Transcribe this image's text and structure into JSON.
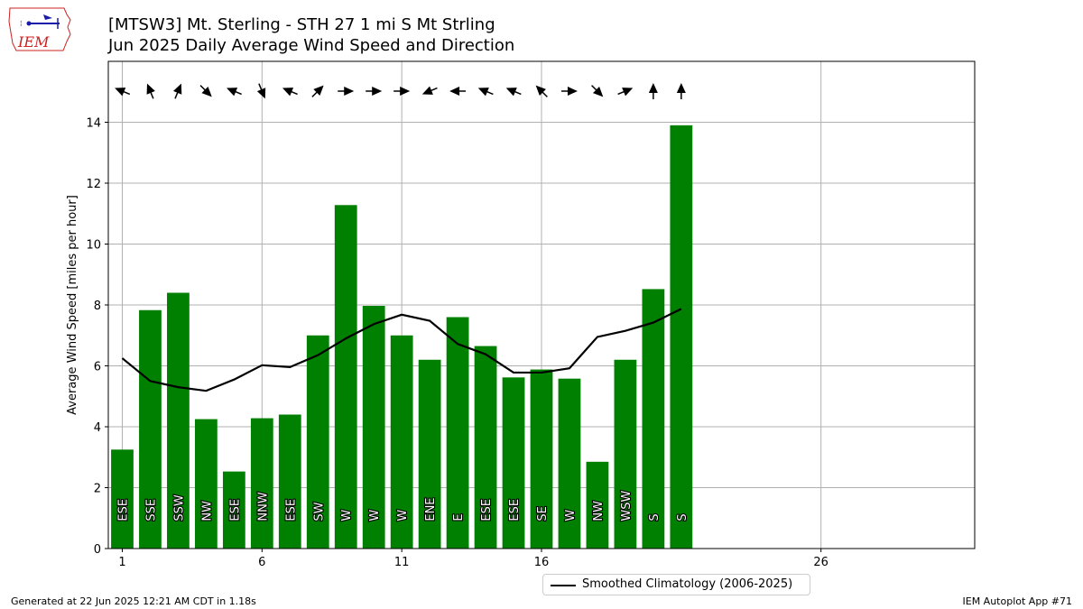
{
  "header": {
    "title_line1": "[MTSW3] Mt. Sterling - STH 27 1 mi S Mt Strling",
    "title_line2": "Jun 2025 Daily Average Wind Speed and Direction",
    "logo_text": "IEM"
  },
  "footer": {
    "generated": "Generated at 22 Jun 2025 12:21 AM CDT in 1.18s",
    "app": "IEM Autoplot App #71"
  },
  "legend": {
    "climatology_label": "Smoothed Climatology (2006-2025)"
  },
  "colors": {
    "bar": "#008000",
    "climatology": "#000000",
    "grid": "#b0b0b0",
    "logo_red": "#cc2222",
    "logo_blue": "#1a1aaa"
  },
  "chart_data": {
    "type": "bar",
    "title": "[MTSW3] Mt. Sterling - STH 27 1 mi S Mt Strling\nJun 2025 Daily Average Wind Speed and Direction",
    "ylabel": "Average Wind Speed [miles per hour]",
    "xlabel": "",
    "xlim": [
      0.5,
      31.5
    ],
    "ylim": [
      0,
      16
    ],
    "xticks": [
      1,
      6,
      11,
      16,
      26
    ],
    "yticks": [
      0,
      2,
      4,
      6,
      8,
      10,
      12,
      14
    ],
    "grid": true,
    "legend_position": "bottom-center",
    "days": [
      1,
      2,
      3,
      4,
      5,
      6,
      7,
      8,
      9,
      10,
      11,
      12,
      13,
      14,
      15,
      16,
      17,
      18,
      19,
      20,
      21
    ],
    "speed": [
      3.25,
      7.83,
      8.4,
      4.25,
      2.53,
      4.28,
      4.4,
      7.0,
      11.28,
      7.97,
      7.0,
      6.2,
      7.6,
      6.65,
      5.62,
      5.88,
      5.58,
      2.85,
      6.2,
      8.52,
      13.9
    ],
    "direction_labels": [
      "ESE",
      "SSE",
      "SSW",
      "NW",
      "ESE",
      "NNW",
      "ESE",
      "SW",
      "W",
      "W",
      "W",
      "ENE",
      "E",
      "ESE",
      "ESE",
      "SE",
      "W",
      "NW",
      "WSW",
      "S",
      "S"
    ],
    "direction_degrees": [
      112.5,
      157.5,
      202.5,
      315,
      112.5,
      337.5,
      112.5,
      225,
      270,
      270,
      270,
      67.5,
      90,
      112.5,
      112.5,
      135,
      270,
      315,
      247.5,
      180,
      180
    ],
    "climatology": {
      "name": "Smoothed Climatology (2006-2025)",
      "values": [
        6.25,
        5.5,
        5.3,
        5.18,
        5.55,
        6.02,
        5.96,
        6.35,
        6.9,
        7.37,
        7.68,
        7.48,
        6.72,
        6.38,
        5.78,
        5.78,
        5.92,
        6.95,
        7.15,
        7.42,
        7.87
      ]
    }
  }
}
